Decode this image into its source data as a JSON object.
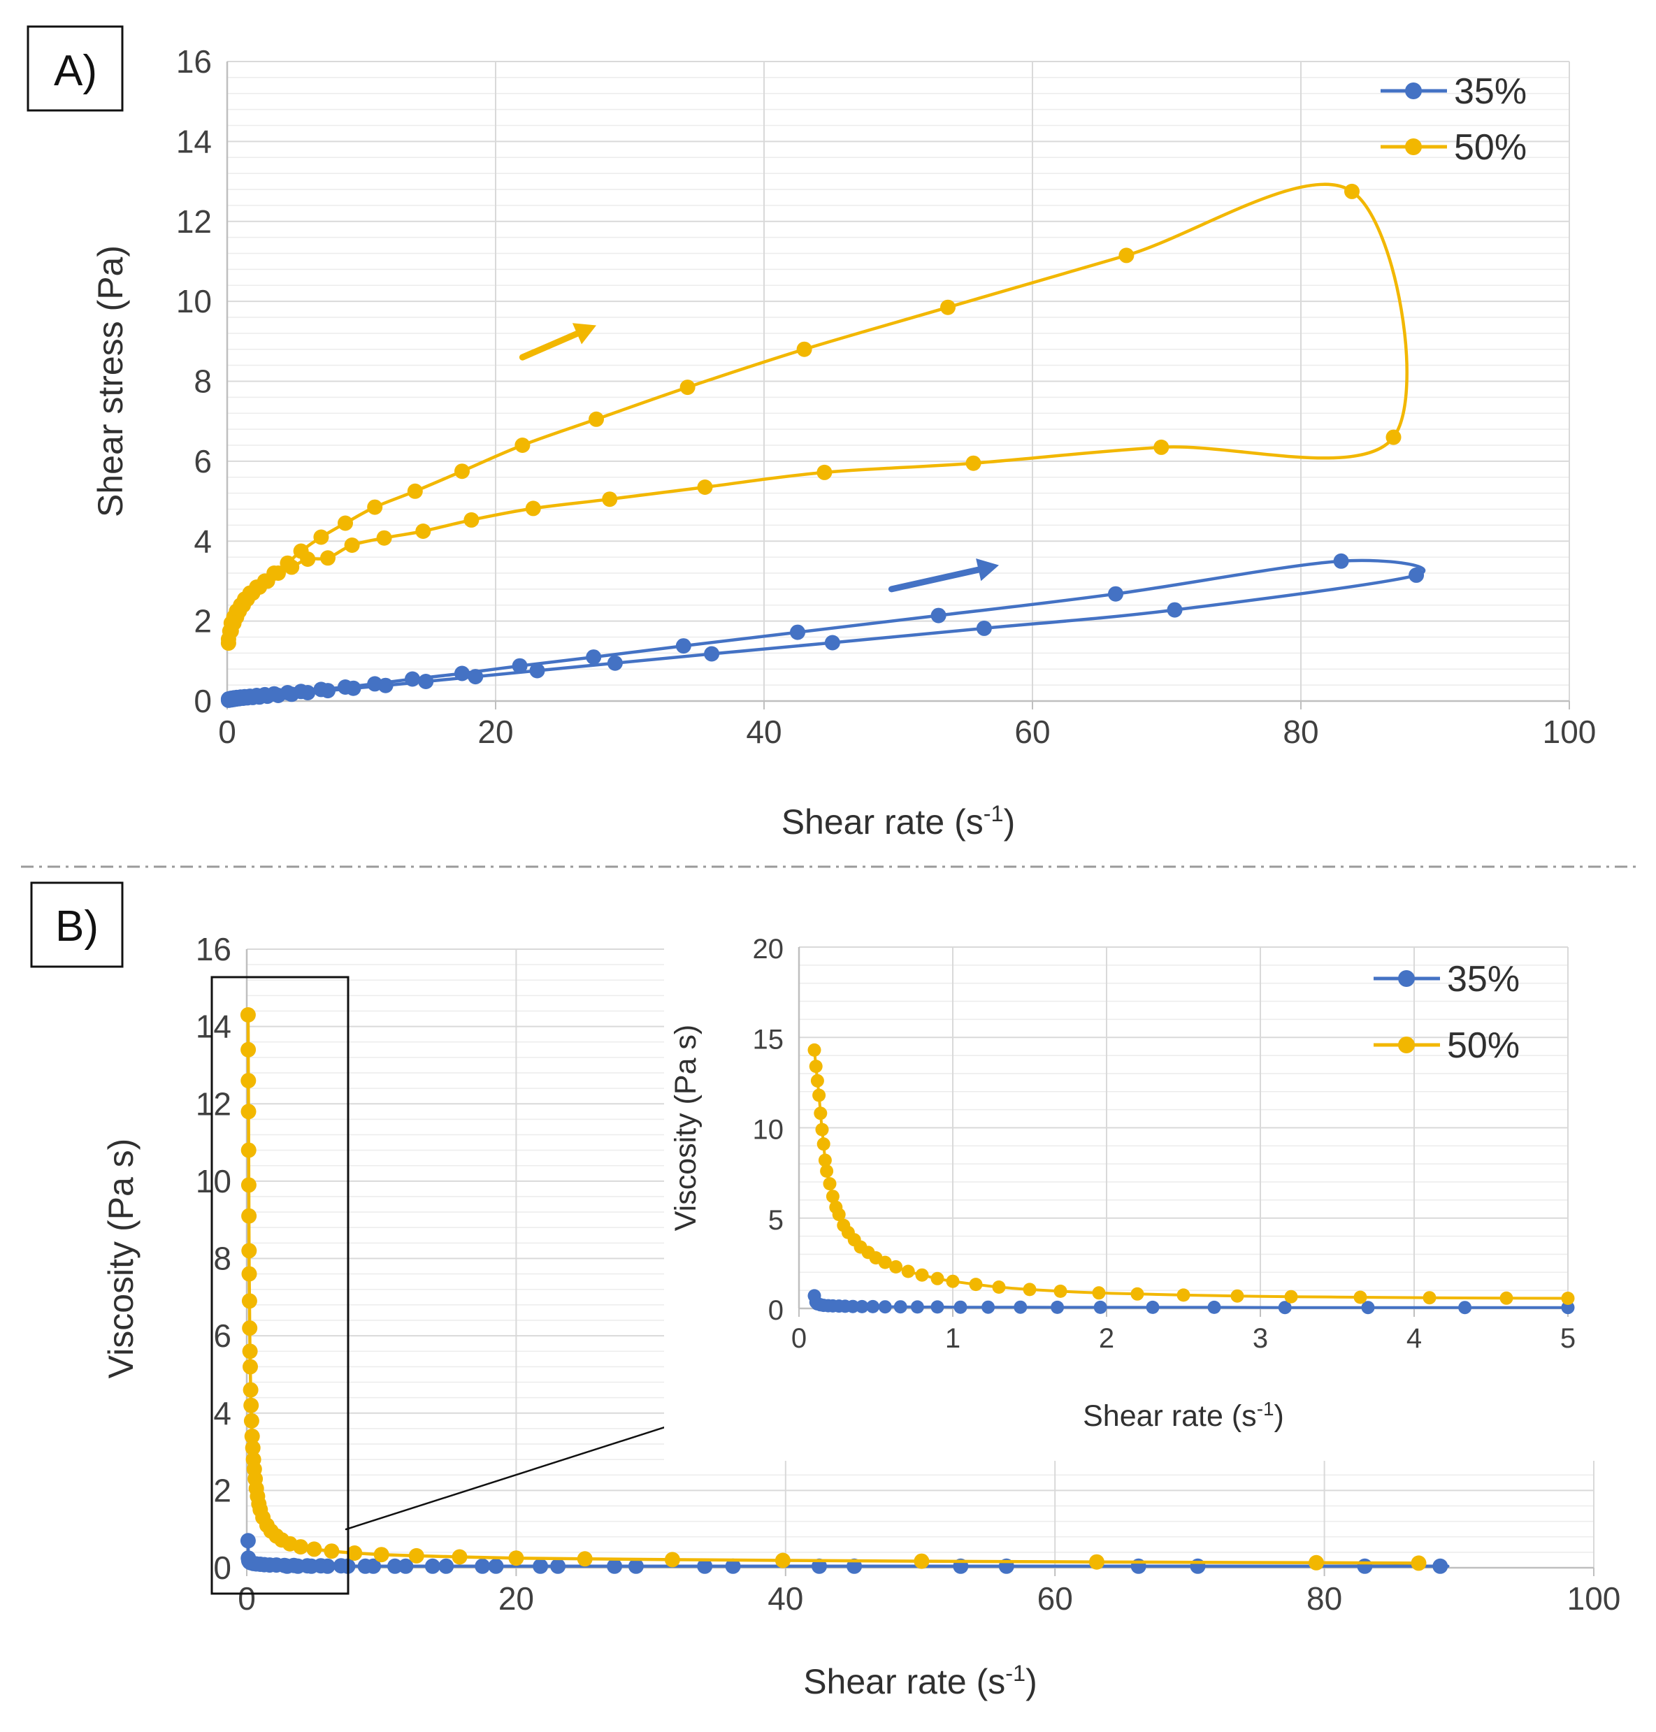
{
  "colors": {
    "s35": "#4472C4",
    "s50": "#F2B700",
    "grid": "#D9D9D9",
    "axis": "#BFBFBF",
    "text": "#404040"
  },
  "panel_a": {
    "label": "A)"
  },
  "panel_b": {
    "label": "B)"
  },
  "chart_data": [
    {
      "type": "line",
      "title": "",
      "xlabel": "Shear rate (s-1)",
      "xlabel_main": "Shear rate (s",
      "xlabel_sup": "-1",
      "xlabel_close": ")",
      "ylabel": "Shear stress (Pa)",
      "xlim": [
        0,
        100
      ],
      "ylim": [
        0,
        16
      ],
      "xticks": [
        "0",
        "20",
        "40",
        "60",
        "80",
        "100"
      ],
      "yticks": [
        "0",
        "2",
        "4",
        "6",
        "8",
        "10",
        "12",
        "14",
        "16"
      ],
      "legend": [
        "35%",
        "50%"
      ],
      "series": [
        {
          "name": "35%",
          "x": [
            0.1,
            0.2,
            0.3,
            0.5,
            0.7,
            1.0,
            1.3,
            1.7,
            2.2,
            2.8,
            3.5,
            4.5,
            5.5,
            7.0,
            8.8,
            11.0,
            13.8,
            17.5,
            21.8,
            27.3,
            34.0,
            42.5,
            53.0,
            66.2,
            83.0,
            88.6,
            70.6,
            56.4,
            45.1,
            36.1,
            28.9,
            23.1,
            18.5,
            14.8,
            11.8,
            9.4,
            7.5,
            6.0,
            4.8,
            3.8,
            3.0,
            2.4,
            1.9,
            1.5,
            1.2,
            0.9,
            0.7,
            0.5,
            0.3,
            0.1
          ],
          "y": [
            0.05,
            0.06,
            0.07,
            0.08,
            0.09,
            0.1,
            0.11,
            0.12,
            0.14,
            0.16,
            0.18,
            0.21,
            0.24,
            0.29,
            0.35,
            0.43,
            0.55,
            0.69,
            0.88,
            1.1,
            1.38,
            1.72,
            2.14,
            2.68,
            3.5,
            3.15,
            2.28,
            1.82,
            1.46,
            1.18,
            0.95,
            0.76,
            0.61,
            0.49,
            0.39,
            0.32,
            0.26,
            0.21,
            0.17,
            0.14,
            0.12,
            0.1,
            0.09,
            0.08,
            0.07,
            0.06,
            0.05,
            0.04,
            0.03,
            0.02
          ]
        },
        {
          "name": "50%",
          "x": [
            0.1,
            0.2,
            0.3,
            0.5,
            0.7,
            1.0,
            1.3,
            1.7,
            2.2,
            2.8,
            3.5,
            4.5,
            5.5,
            7.0,
            8.8,
            11.0,
            14.0,
            17.5,
            22.0,
            27.5,
            34.3,
            43.0,
            53.7,
            67.0,
            83.8,
            86.9,
            69.6,
            55.6,
            44.5,
            35.6,
            28.5,
            22.8,
            18.2,
            14.6,
            11.7,
            9.3,
            7.5,
            6.0,
            4.8,
            3.8,
            3.0,
            2.4,
            1.9,
            1.5,
            1.2,
            0.9,
            0.7,
            0.5,
            0.3,
            0.1
          ],
          "y": [
            1.45,
            1.75,
            1.95,
            2.1,
            2.25,
            2.4,
            2.55,
            2.7,
            2.85,
            3.0,
            3.2,
            3.45,
            3.75,
            4.1,
            4.45,
            4.85,
            5.25,
            5.75,
            6.4,
            7.05,
            7.85,
            8.8,
            9.85,
            11.15,
            12.75,
            6.6,
            6.35,
            5.95,
            5.72,
            5.35,
            5.05,
            4.82,
            4.53,
            4.25,
            4.08,
            3.9,
            3.58,
            3.55,
            3.35,
            3.2,
            3.0,
            2.85,
            2.7,
            2.55,
            2.4,
            2.25,
            2.1,
            1.95,
            1.75,
            1.55
          ]
        }
      ],
      "annotations": [
        "arrow along 50% upward curve",
        "arrow along 35% upward curve"
      ]
    },
    {
      "type": "scatter",
      "title": "",
      "xlabel": "Shear rate (s-1)",
      "xlabel_main": "Shear rate (s",
      "xlabel_sup": "-1",
      "xlabel_close": ")",
      "ylabel": "Viscosity (Pa s)",
      "xlim": [
        0,
        100
      ],
      "ylim": [
        0,
        16
      ],
      "xticks": [
        "0",
        "20",
        "40",
        "60",
        "80",
        "100"
      ],
      "yticks": [
        "0",
        "2",
        "4",
        "6",
        "8",
        "10",
        "12",
        "14",
        "16"
      ],
      "series": [
        {
          "name": "35%",
          "x": [
            0.1,
            0.12,
            0.15,
            0.2,
            0.3,
            0.5,
            0.7,
            1.0,
            1.3,
            1.7,
            2.2,
            2.8,
            3.5,
            4.5,
            5.5,
            7.0,
            8.8,
            11.0,
            13.8,
            17.5,
            21.8,
            27.3,
            34.0,
            42.5,
            53.0,
            66.2,
            83.0,
            88.6,
            70.6,
            56.4,
            45.1,
            36.1,
            28.9,
            23.1,
            18.5,
            14.8,
            11.8,
            9.4,
            7.5,
            6.0,
            4.8,
            3.8,
            3.0
          ],
          "y": [
            0.7,
            0.25,
            0.18,
            0.15,
            0.13,
            0.11,
            0.1,
            0.09,
            0.08,
            0.07,
            0.07,
            0.06,
            0.06,
            0.05,
            0.05,
            0.05,
            0.04,
            0.04,
            0.04,
            0.04,
            0.04,
            0.04,
            0.04,
            0.04,
            0.04,
            0.04,
            0.04,
            0.04,
            0.04,
            0.04,
            0.04,
            0.04,
            0.04,
            0.04,
            0.04,
            0.04,
            0.04,
            0.04,
            0.04,
            0.04,
            0.04,
            0.04,
            0.04
          ]
        },
        {
          "name": "50%",
          "x": [
            0.1,
            0.11,
            0.12,
            0.13,
            0.14,
            0.15,
            0.16,
            0.17,
            0.18,
            0.2,
            0.22,
            0.24,
            0.26,
            0.29,
            0.32,
            0.36,
            0.4,
            0.45,
            0.5,
            0.56,
            0.63,
            0.71,
            0.8,
            0.9,
            1.0,
            1.2,
            1.5,
            1.8,
            2.2,
            2.6,
            3.2,
            4.0,
            5.0,
            6.3,
            8.0,
            10.0,
            12.6,
            15.8,
            20.0,
            25.1,
            31.6,
            39.8,
            50.1,
            63.1,
            79.4,
            87.0
          ],
          "y": [
            14.3,
            13.4,
            12.6,
            11.8,
            10.8,
            9.9,
            9.1,
            8.2,
            7.6,
            6.9,
            6.2,
            5.6,
            5.2,
            4.6,
            4.2,
            3.8,
            3.4,
            3.1,
            2.8,
            2.55,
            2.3,
            2.05,
            1.85,
            1.65,
            1.5,
            1.3,
            1.1,
            0.95,
            0.82,
            0.72,
            0.62,
            0.54,
            0.48,
            0.43,
            0.38,
            0.34,
            0.31,
            0.28,
            0.25,
            0.23,
            0.21,
            0.19,
            0.17,
            0.15,
            0.13,
            0.12
          ]
        }
      ],
      "annotations": [
        "zoom box around x 0-5",
        "arrow pointing to inset"
      ]
    },
    {
      "type": "scatter",
      "title": "",
      "xlabel": "Shear rate (s-1)",
      "xlabel_main": "Shear rate (s",
      "xlabel_sup": "-1",
      "xlabel_close": ")",
      "ylabel": "Viscosity (Pa s)",
      "xlim": [
        0,
        5
      ],
      "ylim": [
        0,
        20
      ],
      "xticks": [
        "0",
        "1",
        "2",
        "3",
        "4",
        "5"
      ],
      "yticks": [
        "0",
        "5",
        "10",
        "15",
        "20"
      ],
      "legend": [
        "35%",
        "50%"
      ],
      "series": [
        {
          "name": "35%",
          "x": [
            0.1,
            0.11,
            0.12,
            0.14,
            0.16,
            0.19,
            0.22,
            0.26,
            0.3,
            0.35,
            0.41,
            0.48,
            0.56,
            0.66,
            0.77,
            0.9,
            1.05,
            1.23,
            1.44,
            1.68,
            1.96,
            2.3,
            2.7,
            3.16,
            3.7,
            4.33,
            5.0
          ],
          "y": [
            0.7,
            0.35,
            0.25,
            0.2,
            0.17,
            0.15,
            0.14,
            0.13,
            0.12,
            0.11,
            0.1,
            0.1,
            0.09,
            0.09,
            0.08,
            0.08,
            0.07,
            0.07,
            0.07,
            0.06,
            0.06,
            0.06,
            0.06,
            0.05,
            0.05,
            0.05,
            0.05
          ]
        },
        {
          "name": "50%",
          "x": [
            0.1,
            0.11,
            0.12,
            0.13,
            0.14,
            0.15,
            0.16,
            0.17,
            0.18,
            0.2,
            0.22,
            0.24,
            0.26,
            0.29,
            0.32,
            0.36,
            0.4,
            0.45,
            0.5,
            0.56,
            0.63,
            0.71,
            0.8,
            0.9,
            1.0,
            1.15,
            1.3,
            1.5,
            1.7,
            1.95,
            2.2,
            2.5,
            2.85,
            3.2,
            3.65,
            4.1,
            4.6,
            5.0
          ],
          "y": [
            14.3,
            13.4,
            12.6,
            11.8,
            10.8,
            9.9,
            9.1,
            8.2,
            7.6,
            6.9,
            6.2,
            5.6,
            5.2,
            4.6,
            4.2,
            3.8,
            3.4,
            3.1,
            2.8,
            2.55,
            2.3,
            2.05,
            1.85,
            1.65,
            1.5,
            1.33,
            1.18,
            1.05,
            0.95,
            0.86,
            0.8,
            0.74,
            0.69,
            0.65,
            0.62,
            0.59,
            0.57,
            0.56
          ]
        }
      ]
    }
  ]
}
